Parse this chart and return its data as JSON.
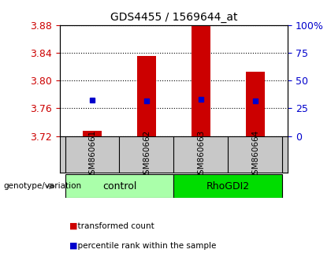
{
  "title": "GDS4455 / 1569644_at",
  "samples": [
    "GSM860661",
    "GSM860662",
    "GSM860663",
    "GSM860664"
  ],
  "group_boundaries": [
    [
      0,
      1,
      "control",
      "#AAFFAA"
    ],
    [
      2,
      3,
      "RhoGDI2",
      "#00DD00"
    ]
  ],
  "bar_bottom": 3.72,
  "bar_tops": [
    3.727,
    3.835,
    3.887,
    3.813
  ],
  "blue_dots": [
    3.772,
    3.771,
    3.773,
    3.771
  ],
  "bar_color": "#CC0000",
  "dot_color": "#0000CC",
  "ylim": [
    3.72,
    3.88
  ],
  "yticks": [
    3.72,
    3.76,
    3.8,
    3.84,
    3.88
  ],
  "right_ytick_percents": [
    0,
    25,
    50,
    75,
    100
  ],
  "right_yticklabels": [
    "0",
    "25",
    "50",
    "75",
    "100%"
  ],
  "legend_red": "transformed count",
  "legend_blue": "percentile rank within the sample",
  "genotype_label": "genotype/variation",
  "bar_width": 0.35,
  "bg_color": "#FFFFFF",
  "sample_bg": "#C8C8C8",
  "tick_color_left": "#CC0000",
  "tick_color_right": "#0000CC"
}
